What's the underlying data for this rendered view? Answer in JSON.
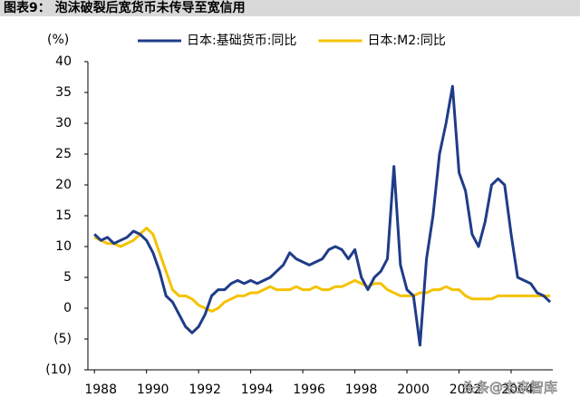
{
  "chart_data": {
    "type": "line",
    "title": "图表9：  泡沫破裂后宽货币未传导至宽信用",
    "y_label": "(%)",
    "watermark": "头条@未来智库",
    "x": [
      1988,
      1988.25,
      1988.5,
      1988.75,
      1989,
      1989.25,
      1989.5,
      1989.75,
      1990,
      1990.25,
      1990.5,
      1990.75,
      1991,
      1991.25,
      1991.5,
      1991.75,
      1992,
      1992.25,
      1992.5,
      1992.75,
      1993,
      1993.25,
      1993.5,
      1993.75,
      1994,
      1994.25,
      1994.5,
      1994.75,
      1995,
      1995.25,
      1995.5,
      1995.75,
      1996,
      1996.25,
      1996.5,
      1996.75,
      1997,
      1997.25,
      1997.5,
      1997.75,
      1998,
      1998.25,
      1998.5,
      1998.75,
      1999,
      1999.25,
      1999.5,
      1999.75,
      2000,
      2000.25,
      2000.5,
      2000.75,
      2001,
      2001.25,
      2001.5,
      2001.75,
      2002,
      2002.25,
      2002.5,
      2002.75,
      2003,
      2003.25,
      2003.5,
      2003.75,
      2004,
      2004.25,
      2004.5,
      2004.75,
      2005,
      2005.25,
      2005.5
    ],
    "series": [
      {
        "name": "日本:基础货币:同比",
        "color": "#1f3c88",
        "values": [
          12,
          11,
          11.5,
          10.5,
          11,
          11.5,
          12.5,
          12,
          11,
          9,
          6,
          2,
          1,
          -1,
          -3,
          -4,
          -3,
          -1,
          2,
          3,
          3,
          4,
          4.5,
          4,
          4.5,
          4,
          4.5,
          5,
          6,
          7,
          9,
          8,
          7.5,
          7,
          7.5,
          8,
          9.5,
          10,
          9.5,
          8,
          9.5,
          5,
          3,
          5,
          6,
          8,
          23,
          7,
          3,
          2,
          -6,
          8,
          15,
          25,
          30,
          36,
          22,
          19,
          12,
          10,
          14,
          20,
          21,
          20,
          12,
          5,
          4.5,
          4,
          2.5,
          2,
          1
        ]
      },
      {
        "name": "日本:M2:同比",
        "color": "#f5c200",
        "values": [
          11.5,
          11,
          10.5,
          10.5,
          10,
          10.5,
          11,
          12,
          13,
          12,
          9,
          6,
          3,
          2,
          2,
          1.5,
          0.5,
          0,
          -0.5,
          0,
          1,
          1.5,
          2,
          2,
          2.5,
          2.5,
          3,
          3.5,
          3,
          3,
          3,
          3.5,
          3,
          3,
          3.5,
          3,
          3,
          3.5,
          3.5,
          4,
          4.5,
          4,
          3.5,
          4,
          4,
          3,
          2.5,
          2,
          2,
          2,
          2.5,
          2.5,
          3,
          3,
          3.5,
          3,
          3,
          2,
          1.5,
          1.5,
          1.5,
          1.5,
          2,
          2,
          2,
          2,
          2,
          2,
          2,
          2,
          2
        ]
      }
    ],
    "xlim": [
      1987.75,
      2005.6
    ],
    "xticks": [
      1988,
      1990,
      1992,
      1994,
      1996,
      1998,
      2000,
      2002,
      2004
    ],
    "ylim": [
      -10,
      40
    ],
    "yticks": [
      40,
      35,
      30,
      25,
      20,
      15,
      10,
      5,
      0,
      {
        "value": -5,
        "label": "(5)"
      },
      {
        "value": -10,
        "label": "(10)"
      }
    ],
    "legend": "top"
  }
}
